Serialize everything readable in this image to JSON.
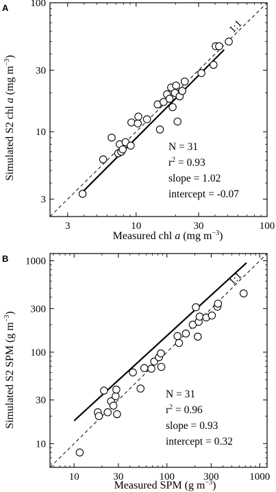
{
  "chart_data": [
    {
      "panel": "A",
      "type": "scatter",
      "scale": "log-log",
      "xlabel": "Measured chl a (mg m−3)",
      "ylabel": "Simulated S2 chl a (mg m−3)",
      "xlabel_parts": {
        "pre": "Measured chl ",
        "italic": "a",
        "post": " (mg m",
        "sup": "−3",
        "close": ")"
      },
      "ylabel_parts": {
        "pre": "Simulated S2 chl ",
        "italic": "a",
        "post": " (mg m",
        "sup": "−3",
        "close": ")"
      },
      "xlim": [
        2.2,
        100
      ],
      "ylim": [
        2.2,
        100
      ],
      "xticks": [
        3,
        10,
        30,
        100
      ],
      "yticks": [
        3,
        10,
        30,
        100
      ],
      "xtick_labels": [
        "3",
        "10",
        "30",
        "100"
      ],
      "ytick_labels": [
        "3",
        "10",
        "30",
        "100"
      ],
      "identity_label": "1:1",
      "stats": {
        "n": "N = 31",
        "r2_base": "r",
        "r2_sup": "2",
        "r2_value": " = 0.93",
        "slope": "slope = 1.02",
        "intercept": "intercept = -0.07"
      },
      "fit": {
        "slope": 1.02,
        "intercept": -0.07,
        "x_range": [
          4,
          47
        ]
      },
      "points": [
        {
          "x": 3.9,
          "y": 3.3
        },
        {
          "x": 5.6,
          "y": 6.1
        },
        {
          "x": 6.5,
          "y": 9.0
        },
        {
          "x": 7.3,
          "y": 6.8
        },
        {
          "x": 7.5,
          "y": 8.0
        },
        {
          "x": 7.7,
          "y": 7.0
        },
        {
          "x": 7.9,
          "y": 7.3
        },
        {
          "x": 8.3,
          "y": 8.3
        },
        {
          "x": 9.1,
          "y": 7.8
        },
        {
          "x": 9.2,
          "y": 11.8
        },
        {
          "x": 10.3,
          "y": 11.6
        },
        {
          "x": 10.4,
          "y": 13.1
        },
        {
          "x": 12.1,
          "y": 12.5
        },
        {
          "x": 14.6,
          "y": 16.3
        },
        {
          "x": 15.2,
          "y": 10.4
        },
        {
          "x": 16.2,
          "y": 17.0
        },
        {
          "x": 17.2,
          "y": 19.5
        },
        {
          "x": 18.0,
          "y": 18.0
        },
        {
          "x": 18.5,
          "y": 22.0
        },
        {
          "x": 19.0,
          "y": 15.5
        },
        {
          "x": 19.8,
          "y": 20.0
        },
        {
          "x": 20.2,
          "y": 22.8
        },
        {
          "x": 20.7,
          "y": 12.0
        },
        {
          "x": 21.5,
          "y": 18.8
        },
        {
          "x": 22.5,
          "y": 20.7
        },
        {
          "x": 23.5,
          "y": 24.5
        },
        {
          "x": 31.5,
          "y": 28.5
        },
        {
          "x": 39.0,
          "y": 33.0
        },
        {
          "x": 40.5,
          "y": 46.0
        },
        {
          "x": 43.0,
          "y": 46.0
        },
        {
          "x": 51.0,
          "y": 50.0
        }
      ]
    },
    {
      "panel": "B",
      "type": "scatter",
      "scale": "log-log",
      "xlabel": "Measured SPM (g m−3)",
      "ylabel": "Simulated S2 SPM (g m−3)",
      "xlabel_parts": {
        "pre": "Measured SPM",
        "italic": "",
        "post": " (g m",
        "sup": "−3",
        "close": ")"
      },
      "ylabel_parts": {
        "pre": "Simulated S2 SPM",
        "italic": "",
        "post": " (g m",
        "sup": "−3",
        "close": ")"
      },
      "xlim": [
        5.5,
        1200
      ],
      "ylim": [
        5.5,
        1200
      ],
      "xticks": [
        10,
        30,
        100,
        300,
        1000
      ],
      "yticks": [
        10,
        30,
        100,
        300,
        1000
      ],
      "xtick_labels": [
        "10",
        "30",
        "100",
        "300",
        "1000"
      ],
      "ytick_labels": [
        "10",
        "30",
        "100",
        "300",
        "1000"
      ],
      "identity_label": "1:1",
      "stats": {
        "n": "N = 31",
        "r2_base": "r",
        "r2_sup": "2",
        "r2_value": " = 0.96",
        "slope": "slope = 0.93",
        "intercept": "intercept = 0.32"
      },
      "fit": {
        "slope": 0.93,
        "intercept": 0.32,
        "x_range": [
          10,
          720
        ]
      },
      "points": [
        {
          "x": 11.5,
          "y": 8.0
        },
        {
          "x": 18.0,
          "y": 22.0
        },
        {
          "x": 18.5,
          "y": 20.0
        },
        {
          "x": 21.0,
          "y": 38.0
        },
        {
          "x": 23.0,
          "y": 22.0
        },
        {
          "x": 25.0,
          "y": 29.0
        },
        {
          "x": 26.5,
          "y": 26.0
        },
        {
          "x": 28.0,
          "y": 33.0
        },
        {
          "x": 28.5,
          "y": 39.0
        },
        {
          "x": 29.0,
          "y": 21.0
        },
        {
          "x": 43.0,
          "y": 60.0
        },
        {
          "x": 52.0,
          "y": 40.0
        },
        {
          "x": 57.0,
          "y": 67.0
        },
        {
          "x": 68.0,
          "y": 66.0
        },
        {
          "x": 73.0,
          "y": 79.0
        },
        {
          "x": 82.0,
          "y": 88.0
        },
        {
          "x": 86.0,
          "y": 97.0
        },
        {
          "x": 87.0,
          "y": 69.0
        },
        {
          "x": 130.0,
          "y": 150.0
        },
        {
          "x": 135.0,
          "y": 126.0
        },
        {
          "x": 160.0,
          "y": 160.0
        },
        {
          "x": 190.0,
          "y": 200.0
        },
        {
          "x": 205.0,
          "y": 310.0
        },
        {
          "x": 215.0,
          "y": 148.0
        },
        {
          "x": 220.0,
          "y": 215.0
        },
        {
          "x": 225.0,
          "y": 245.0
        },
        {
          "x": 265.0,
          "y": 240.0
        },
        {
          "x": 305.0,
          "y": 252.0
        },
        {
          "x": 350.0,
          "y": 315.0
        },
        {
          "x": 355.0,
          "y": 340.0
        },
        {
          "x": 670.0,
          "y": 440.0
        }
      ]
    }
  ]
}
